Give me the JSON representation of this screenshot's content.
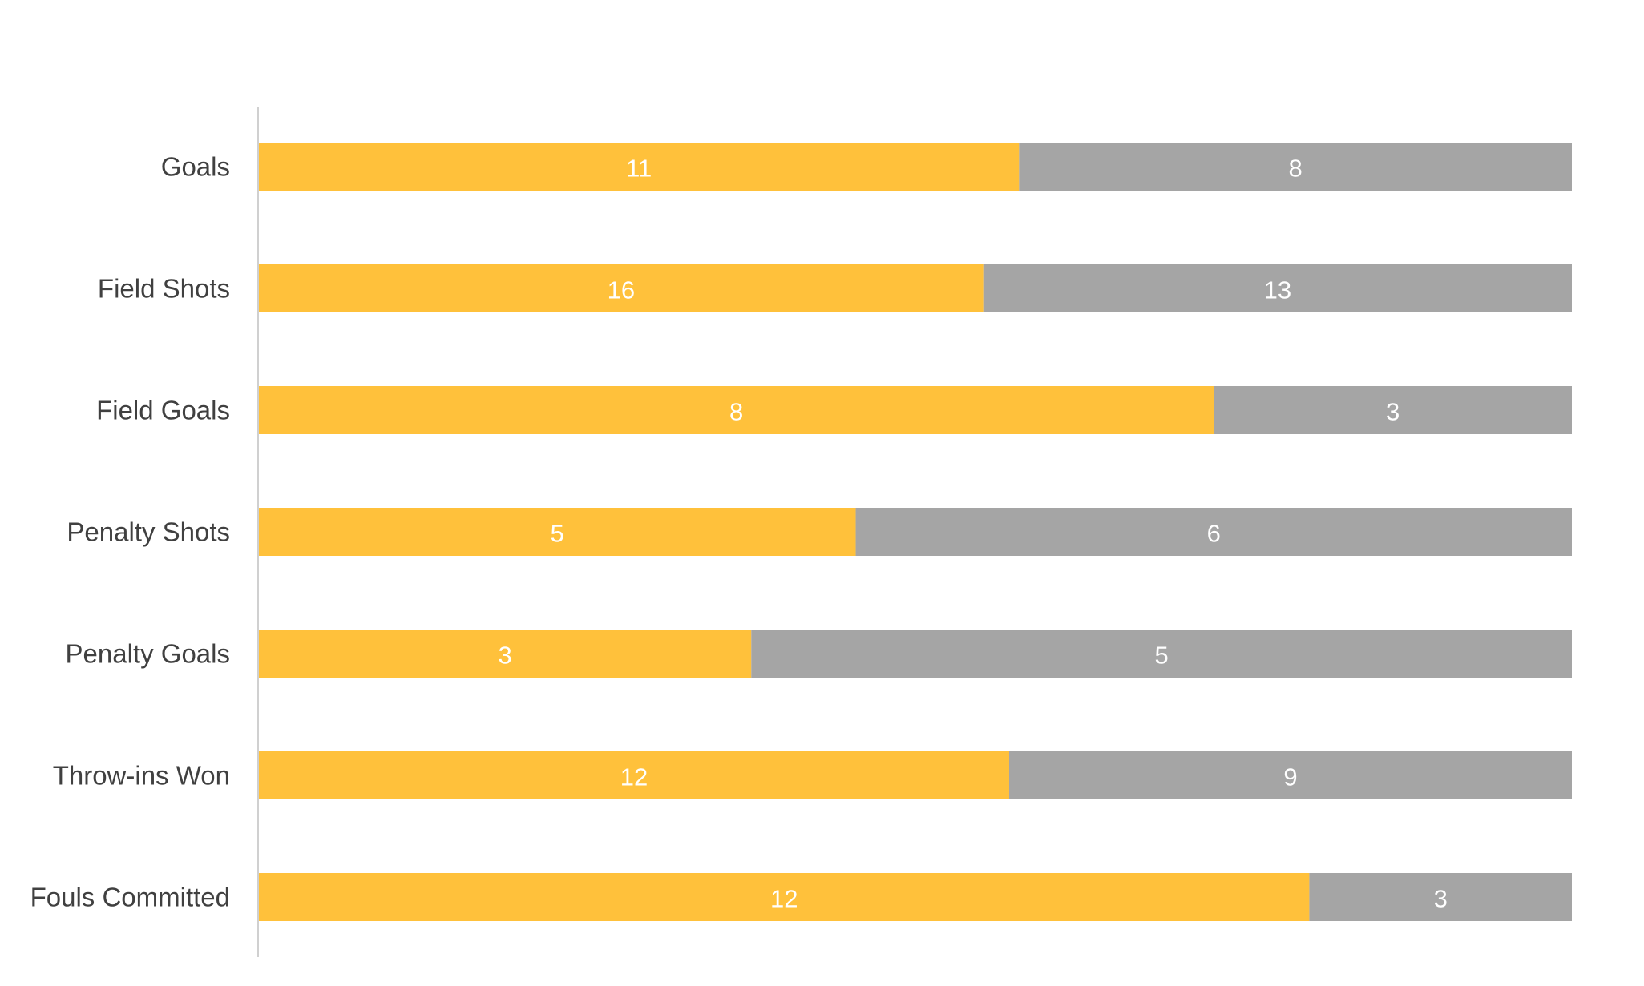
{
  "chart_data": {
    "type": "bar",
    "orientation": "horizontal",
    "stacking": "percent",
    "categories": [
      "Goals",
      "Field Shots",
      "Field Goals",
      "Penalty Shots",
      "Penalty Goals",
      "Throw-ins Won",
      "Fouls Committed"
    ],
    "series": [
      {
        "values": [
          11,
          16,
          8,
          5,
          3,
          12,
          12
        ],
        "color": "#FFC13B"
      },
      {
        "values": [
          8,
          13,
          3,
          6,
          5,
          9,
          3
        ],
        "color": "#A5A5A5"
      }
    ],
    "title": "",
    "xlabel": "",
    "ylabel": "",
    "legend": "none",
    "grid": false,
    "data_labels": true
  }
}
